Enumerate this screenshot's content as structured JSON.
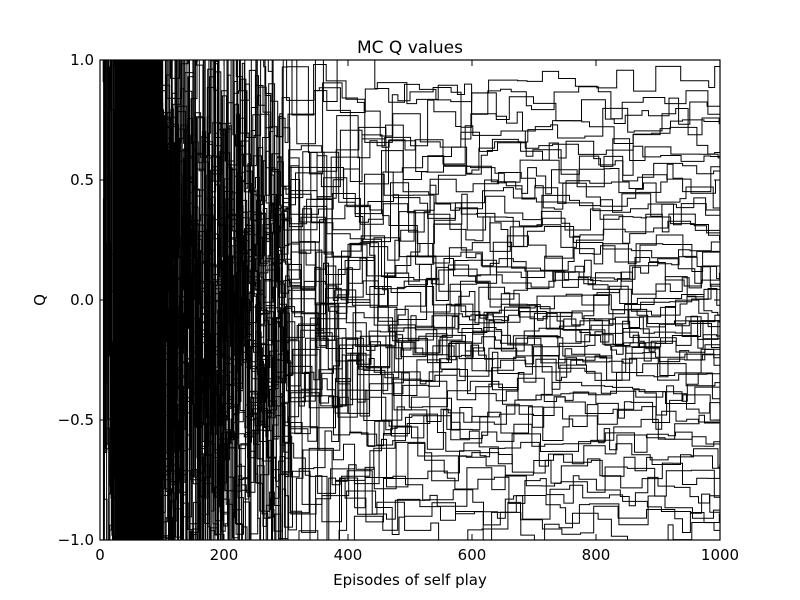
{
  "chart_data": {
    "type": "line",
    "title": "MC Q values",
    "xlabel": "Episodes of self play",
    "ylabel": "Q",
    "xlim": [
      0,
      1000
    ],
    "ylim": [
      -1.0,
      1.0
    ],
    "x_ticks": [
      0,
      200,
      400,
      600,
      800,
      1000
    ],
    "x_tick_labels": [
      "0",
      "200",
      "400",
      "600",
      "800",
      "1000"
    ],
    "y_ticks": [
      -1.0,
      -0.5,
      0.0,
      0.5,
      1.0
    ],
    "y_tick_labels": [
      "−1.0",
      "−0.5",
      "0.0",
      "0.5",
      "1.0"
    ],
    "grid": false,
    "legend": "none",
    "line_color": "#000000",
    "series_count": 60,
    "series_final_values": [
      0.82,
      0.79,
      0.74,
      0.7,
      0.66,
      0.62,
      0.58,
      0.55,
      0.51,
      0.47,
      0.44,
      0.4,
      0.37,
      0.33,
      0.3,
      0.27,
      0.24,
      0.21,
      0.18,
      0.15,
      0.12,
      0.1,
      0.07,
      0.05,
      0.02,
      0.0,
      -0.02,
      -0.04,
      -0.06,
      -0.08,
      -0.1,
      -0.12,
      -0.14,
      -0.16,
      -0.18,
      -0.2,
      -0.22,
      -0.24,
      -0.26,
      -0.28,
      -0.3,
      -0.33,
      -0.36,
      -0.39,
      -0.42,
      -0.45,
      -0.48,
      -0.52,
      -0.56,
      -0.6,
      -0.64,
      -0.68,
      -0.72,
      -0.76,
      -0.8,
      -0.84,
      -0.88,
      -0.91,
      -0.95,
      0.92
    ]
  }
}
